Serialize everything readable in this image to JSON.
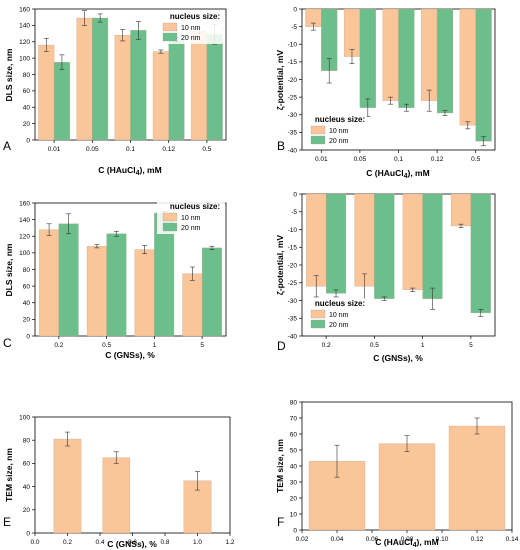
{
  "colors": {
    "series_10nm": "#fbc59a",
    "series_20nm": "#6cbf8a",
    "axis": "#000000",
    "error_bar": "#333333"
  },
  "legend_title": "nucleus size:",
  "chart_data": [
    {
      "panel": "A",
      "type": "bar",
      "categories": [
        "0.01",
        "0.05",
        "0.1",
        "0.12",
        "0.5"
      ],
      "series": [
        {
          "name": "10 nm",
          "values": [
            116,
            149,
            128,
            108,
            133
          ],
          "errors": [
            8,
            9,
            7,
            2,
            3
          ]
        },
        {
          "name": "20 nm",
          "values": [
            95,
            149,
            134,
            122,
            129
          ],
          "errors": [
            9,
            5,
            11,
            3,
            12
          ]
        }
      ],
      "xlabel": "C (HAuCl4), mM",
      "ylabel": "DLS size, nm",
      "ylim": [
        0,
        160
      ],
      "yticks": [
        "0",
        "20",
        "40",
        "60",
        "80",
        "100",
        "120",
        "140",
        "160"
      ],
      "legend": "top-right"
    },
    {
      "panel": "B",
      "type": "bar",
      "categories": [
        "0.01",
        "0.05",
        "0.1",
        "0.12",
        "0.5"
      ],
      "series": [
        {
          "name": "10 nm",
          "values": [
            -5,
            -13.5,
            -26,
            -26,
            -33
          ],
          "errors": [
            1,
            2,
            1,
            3,
            1
          ]
        },
        {
          "name": "20 nm",
          "values": [
            -17.5,
            -28,
            -28,
            -29.5,
            -37.5
          ],
          "errors": [
            3.5,
            2.5,
            1,
            0.7,
            1.3
          ]
        }
      ],
      "xlabel": "C (HAuCl4), mM",
      "ylabel": "ζ-potential, mV",
      "ylim": [
        -40,
        0
      ],
      "yticks": [
        "0",
        "-5",
        "-10",
        "-15",
        "-20",
        "-25",
        "-30",
        "-35",
        "-40"
      ],
      "legend": "bottom-left"
    },
    {
      "panel": "C",
      "type": "bar",
      "categories": [
        "0.2",
        "0.5",
        "1",
        "5"
      ],
      "series": [
        {
          "name": "10 nm",
          "values": [
            128,
            108,
            104,
            75
          ],
          "errors": [
            7,
            2,
            5,
            8
          ]
        },
        {
          "name": "20 nm",
          "values": [
            135,
            123,
            148,
            106
          ],
          "errors": [
            12,
            3,
            2,
            2
          ]
        }
      ],
      "xlabel": "C (GNSs), %",
      "ylabel": "DLS size, nm",
      "ylim": [
        0,
        160
      ],
      "yticks": [
        "0",
        "20",
        "40",
        "60",
        "80",
        "100",
        "120",
        "140",
        "160"
      ],
      "legend": "top-right"
    },
    {
      "panel": "D",
      "type": "bar",
      "categories": [
        "0.2",
        "0.5",
        "1",
        "5"
      ],
      "series": [
        {
          "name": "10 nm",
          "values": [
            -26,
            -26,
            -27,
            -9
          ],
          "errors": [
            3,
            3.5,
            0.5,
            0.5
          ]
        },
        {
          "name": "20 nm",
          "values": [
            -28,
            -29.5,
            -29.5,
            -33.5
          ],
          "errors": [
            1,
            0.5,
            3,
            1
          ]
        }
      ],
      "xlabel": "C (GNSs), %",
      "ylabel": "ζ-potential, mV",
      "ylim": [
        -40,
        0
      ],
      "yticks": [
        "0",
        "-5",
        "-10",
        "-15",
        "-20",
        "-25",
        "-30",
        "-35",
        "-40"
      ],
      "legend": "bottom-left"
    },
    {
      "panel": "E",
      "type": "bar",
      "x": [
        0.2,
        0.5,
        1.0
      ],
      "series": [
        {
          "values": [
            81,
            65,
            45
          ],
          "errors": [
            6,
            5,
            8
          ]
        }
      ],
      "xlabel": "C (GNSs), %",
      "ylabel": "TEM size, nm",
      "xlim": [
        0,
        1.2
      ],
      "xticks": [
        "0.0",
        "0.2",
        "0.4",
        "0.6",
        "0.8",
        "1.0",
        "1.2"
      ],
      "ylim": [
        0,
        100
      ],
      "yticks": [
        "0",
        "20",
        "40",
        "60",
        "80",
        "100"
      ]
    },
    {
      "panel": "F",
      "type": "bar",
      "x": [
        0.04,
        0.08,
        0.12
      ],
      "series": [
        {
          "values": [
            43,
            54,
            65
          ],
          "errors": [
            10,
            5,
            5
          ]
        }
      ],
      "xlabel": "C (HAuCl4), mM",
      "ylabel": "TEM size, nm",
      "xlim": [
        0.02,
        0.14
      ],
      "xticks": [
        "0.02",
        "0.04",
        "0.06",
        "0.08",
        "0.10",
        "0.12",
        "0.14"
      ],
      "ylim": [
        0,
        80
      ],
      "yticks": [
        "0",
        "10",
        "20",
        "30",
        "40",
        "50",
        "60",
        "70",
        "80"
      ]
    }
  ]
}
